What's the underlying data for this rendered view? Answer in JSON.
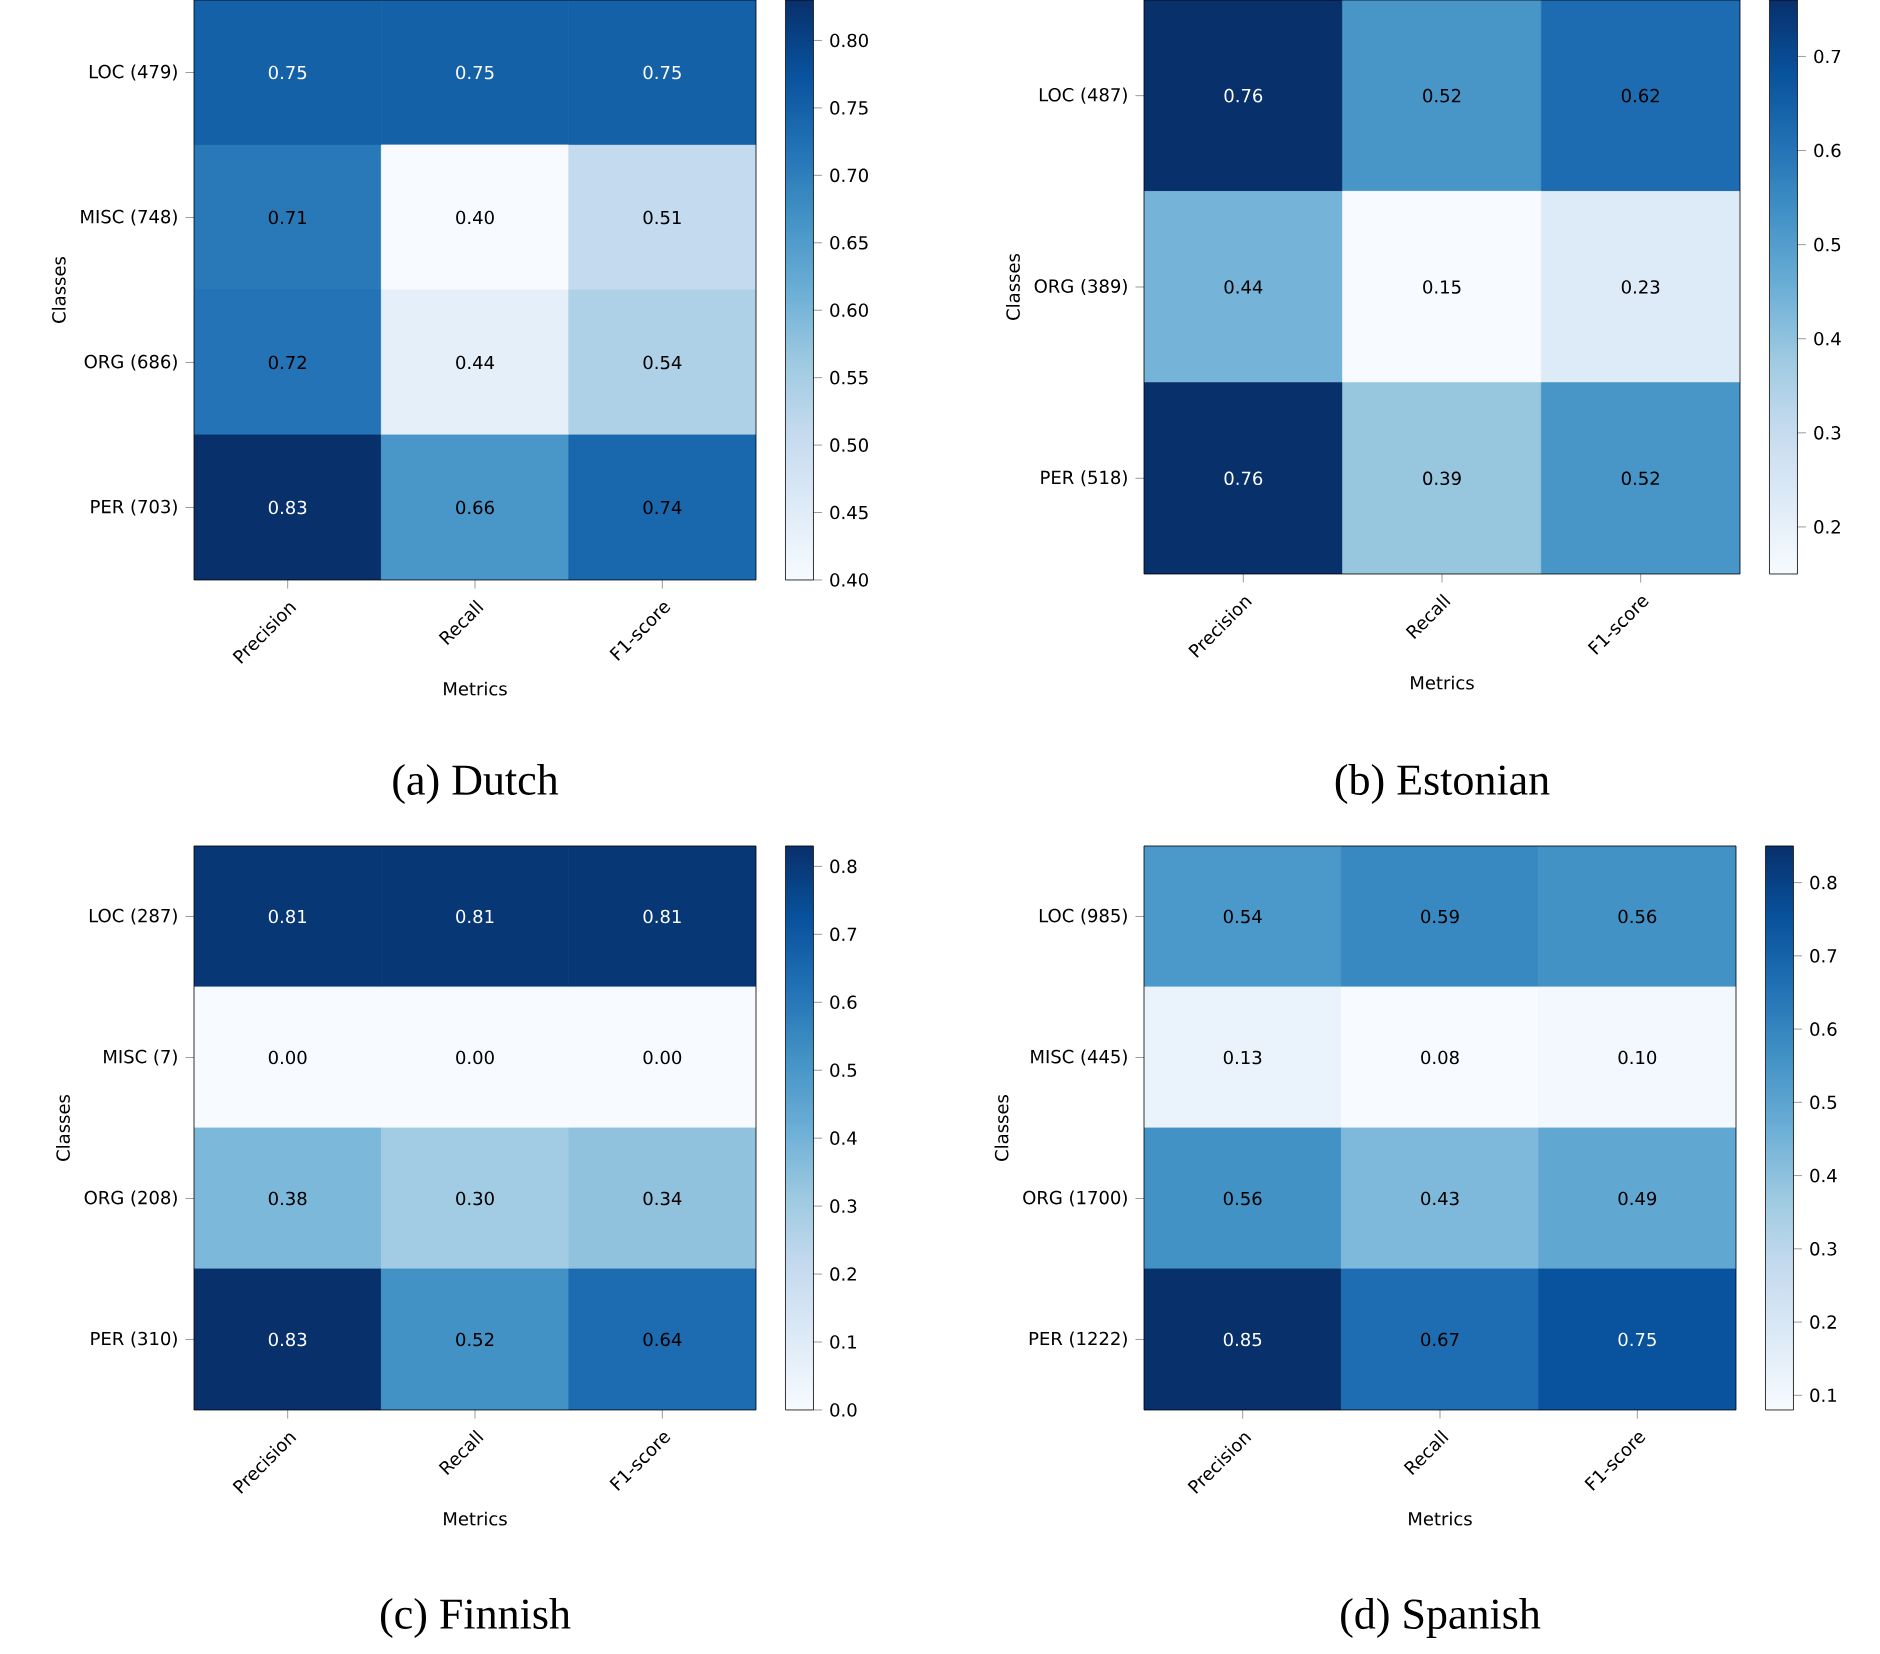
{
  "chart_data": [
    {
      "type": "heatmap",
      "title": "(a) Dutch",
      "xlabel": "Metrics",
      "ylabel": "Classes",
      "categories": [
        "Precision",
        "Recall",
        "F1-score"
      ],
      "y_categories": [
        "LOC (479)",
        "MISC (748)",
        "ORG (686)",
        "PER (703)"
      ],
      "cells": [
        [
          0.75,
          0.75,
          0.75
        ],
        [
          0.71,
          0.4,
          0.51
        ],
        [
          0.72,
          0.44,
          0.54
        ],
        [
          0.83,
          0.66,
          0.74
        ]
      ],
      "cell_labels": [
        [
          "0.75",
          "0.75",
          "0.75"
        ],
        [
          "0.71",
          "0.40",
          "0.51"
        ],
        [
          "0.72",
          "0.44",
          "0.54"
        ],
        [
          "0.83",
          "0.66",
          "0.74"
        ]
      ],
      "clim": [
        0.4,
        0.83
      ],
      "cticks": [
        {
          "value": 0.4,
          "label": "0.40"
        },
        {
          "value": 0.45,
          "label": "0.45"
        },
        {
          "value": 0.5,
          "label": "0.50"
        },
        {
          "value": 0.55,
          "label": "0.55"
        },
        {
          "value": 0.6,
          "label": "0.60"
        },
        {
          "value": 0.65,
          "label": "0.65"
        },
        {
          "value": 0.7,
          "label": "0.70"
        },
        {
          "value": 0.75,
          "label": "0.75"
        },
        {
          "value": 0.8,
          "label": "0.80"
        }
      ]
    },
    {
      "type": "heatmap",
      "title": "(b) Estonian",
      "xlabel": "Metrics",
      "ylabel": "Classes",
      "categories": [
        "Precision",
        "Recall",
        "F1-score"
      ],
      "y_categories": [
        "LOC (487)",
        "ORG (389)",
        "PER (518)"
      ],
      "cells": [
        [
          0.76,
          0.52,
          0.62
        ],
        [
          0.44,
          0.15,
          0.23
        ],
        [
          0.76,
          0.39,
          0.52
        ]
      ],
      "cell_labels": [
        [
          "0.76",
          "0.52",
          "0.62"
        ],
        [
          "0.44",
          "0.15",
          "0.23"
        ],
        [
          "0.76",
          "0.39",
          "0.52"
        ]
      ],
      "clim": [
        0.15,
        0.76
      ],
      "cticks": [
        0.2,
        0.3,
        0.4,
        0.5,
        0.6,
        0.7
      ]
    },
    {
      "type": "heatmap",
      "title": "(c) Finnish",
      "xlabel": "Metrics",
      "ylabel": "Classes",
      "categories": [
        "Precision",
        "Recall",
        "F1-score"
      ],
      "y_categories": [
        "LOC (287)",
        "MISC (7)",
        "ORG (208)",
        "PER (310)"
      ],
      "cells": [
        [
          0.81,
          0.81,
          0.81
        ],
        [
          0.0,
          0.0,
          0.0
        ],
        [
          0.38,
          0.3,
          0.34
        ],
        [
          0.83,
          0.52,
          0.64
        ]
      ],
      "cell_labels": [
        [
          "0.81",
          "0.81",
          "0.81"
        ],
        [
          "0.00",
          "0.00",
          "0.00"
        ],
        [
          "0.38",
          "0.30",
          "0.34"
        ],
        [
          "0.83",
          "0.52",
          "0.64"
        ]
      ],
      "clim": [
        0,
        0.83
      ],
      "cticks": [
        {
          "value": 0,
          "label": "0.0"
        },
        0.1,
        0.2,
        0.3,
        0.4,
        0.5,
        0.6,
        0.7,
        0.8
      ]
    },
    {
      "type": "heatmap",
      "title": "(d) Spanish",
      "xlabel": "Metrics",
      "ylabel": "Classes",
      "categories": [
        "Precision",
        "Recall",
        "F1-score"
      ],
      "y_categories": [
        "LOC (985)",
        "MISC (445)",
        "ORG (1700)",
        "PER (1222)"
      ],
      "cells": [
        [
          0.54,
          0.59,
          0.56
        ],
        [
          0.13,
          0.08,
          0.1
        ],
        [
          0.56,
          0.43,
          0.49
        ],
        [
          0.85,
          0.67,
          0.75
        ]
      ],
      "cell_labels": [
        [
          "0.54",
          "0.59",
          "0.56"
        ],
        [
          "0.13",
          "0.08",
          "0.10"
        ],
        [
          "0.56",
          "0.43",
          "0.49"
        ],
        [
          "0.85",
          "0.67",
          "0.75"
        ]
      ],
      "clim": [
        0.08,
        0.85
      ],
      "cticks": [
        0.1,
        0.2,
        0.3,
        0.4,
        0.5,
        0.6,
        0.7,
        0.8
      ]
    }
  ]
}
